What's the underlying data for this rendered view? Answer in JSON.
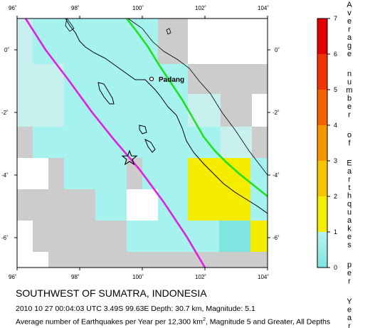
{
  "map": {
    "lon_ticks": [
      "96˚",
      "98˚",
      "100˚",
      "102˚",
      "104˚"
    ],
    "lat_ticks": [
      "0˚",
      "-2˚",
      "-4˚",
      "-6˚"
    ],
    "city_label": "Padang",
    "epicenter": {
      "lon": 99.63,
      "lat": -3.49
    }
  },
  "colorbar": {
    "ticks": [
      "0",
      "1",
      "2",
      "3",
      "4",
      "5",
      "6",
      "7"
    ],
    "label": "Average number of Earthquakes per Year",
    "colors": [
      "#7fe5e0",
      "#f5ed00",
      "#f7c400",
      "#f79600",
      "#f56200",
      "#f03200",
      "#e00000"
    ]
  },
  "text": {
    "title": "SOUTHWEST OF SUMATRA, INDONESIA",
    "line1": "2010 10 27 00:04:03 UTC 3.49S 99.63E Depth: 30.7 km, Magnitude: 5.1",
    "line2_a": "Average number of Earthquakes per Year per 12,300 km",
    "line2_sup": "2",
    "line2_b": ", Magnitude 5 and Greater, All Depths"
  },
  "colors": {
    "trench": "#e020e0",
    "trend": "#20e020",
    "cyan_cell": "#a6f2ef",
    "light_cell": "#c8f0ee",
    "gray_cell": "#cccccc",
    "yellow_cell": "#f5ed00"
  }
}
